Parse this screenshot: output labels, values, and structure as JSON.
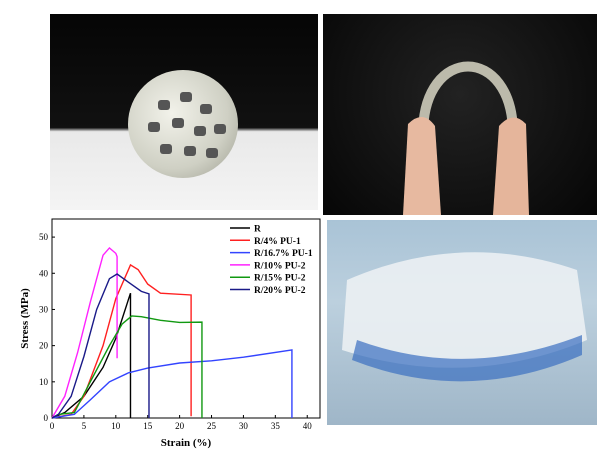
{
  "chart_data": {
    "type": "line",
    "xlabel": "Strain (%)",
    "ylabel": "Stress (MPa)",
    "xlim": [
      0,
      42
    ],
    "ylim": [
      0,
      55
    ],
    "xticks": [
      0,
      5,
      10,
      15,
      20,
      25,
      30,
      35,
      40
    ],
    "yticks": [
      0,
      10,
      20,
      30,
      40,
      50
    ],
    "grid": false,
    "legend": "top-right",
    "series": [
      {
        "name": "R",
        "color": "#000000",
        "x": [
          0,
          2,
          5,
          8,
          10,
          12.3,
          12.3
        ],
        "y": [
          0,
          1.5,
          6,
          14,
          22,
          34.5,
          0
        ]
      },
      {
        "name": "R/4% PU-1",
        "color": "#ff2020",
        "x": [
          0,
          3,
          5,
          8,
          10,
          12.3,
          13.5,
          15,
          17,
          21.8,
          21.8
        ],
        "y": [
          0,
          1,
          6,
          20,
          33,
          42.3,
          41,
          37,
          34.5,
          34,
          0.5
        ]
      },
      {
        "name": "R/16.7% PU-1",
        "color": "#3344ff",
        "x": [
          0,
          3.5,
          6,
          9,
          12,
          15,
          20,
          25,
          30,
          37.6,
          37.6
        ],
        "y": [
          0,
          1,
          5,
          10,
          12.5,
          13.8,
          15.2,
          15.8,
          16.8,
          18.8,
          0
        ]
      },
      {
        "name": "R/10% PU-2",
        "color": "#ff22ff",
        "x": [
          0,
          2,
          4,
          6,
          8,
          9,
          10,
          10.2,
          10.2
        ],
        "y": [
          0,
          6,
          18,
          32,
          45,
          47,
          45.5,
          44.6,
          16.5
        ]
      },
      {
        "name": "R/15% PU-2",
        "color": "#119911",
        "x": [
          0,
          1,
          3.5,
          6,
          9,
          11,
          12.5,
          14,
          17,
          20,
          23.5,
          23.5
        ],
        "y": [
          0,
          1,
          1.5,
          10,
          20,
          26,
          28.2,
          28,
          27,
          26.4,
          26.5,
          0
        ]
      },
      {
        "name": "R/20% PU-2",
        "color": "#1a1a88",
        "x": [
          0,
          1,
          3,
          5,
          7,
          9,
          10.2,
          12,
          14,
          15.2,
          15.2
        ],
        "y": [
          0,
          1,
          6,
          17,
          30,
          38.5,
          39.8,
          37.5,
          35,
          34.3,
          0
        ]
      }
    ]
  }
}
